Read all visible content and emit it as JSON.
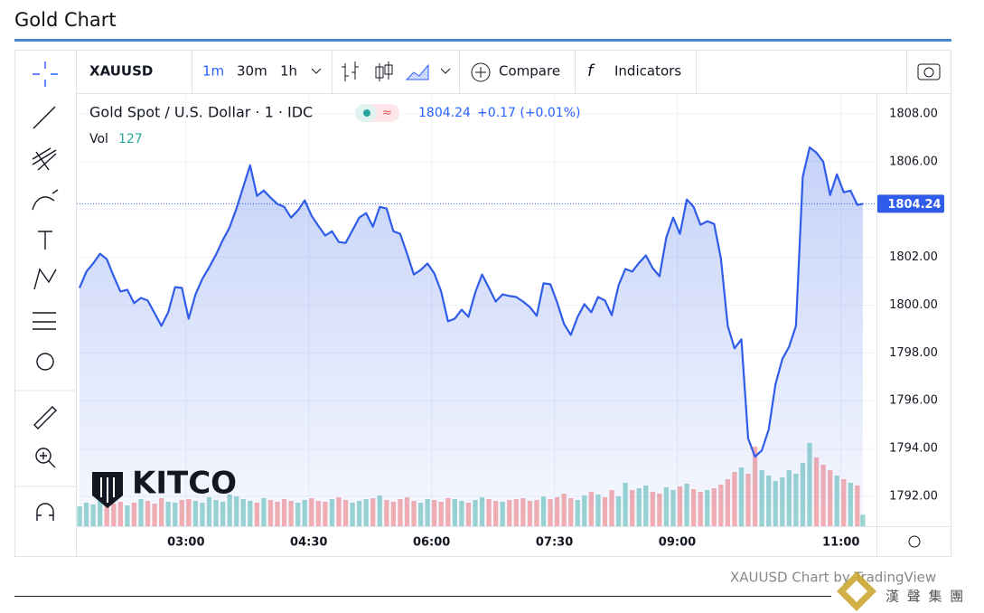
{
  "header": {
    "title": "Gold Chart"
  },
  "toolbar": {
    "symbol": "XAUUSD",
    "intervals": [
      "1m",
      "30m",
      "1h"
    ],
    "compare": "Compare",
    "indicators": "Indicators"
  },
  "legend": {
    "instrument": "Gold Spot / U.S. Dollar · 1 · IDC",
    "change": "+0.17 (+0.01%)"
  },
  "watermark": "KITCO",
  "footer": {
    "credit": "XAUUSD Chart by TradingView",
    "stamp": "漢 聲 集 團"
  },
  "chart_data": {
    "type": "area",
    "color": "#2f5ce8",
    "xlim": [
      100,
      686
    ],
    "xticks": [
      {
        "value": 180,
        "label": "03:00"
      },
      {
        "value": 270,
        "label": "04:30"
      },
      {
        "value": 360,
        "label": "06:00"
      },
      {
        "value": 450,
        "label": "07:30"
      },
      {
        "value": 540,
        "label": "09:00"
      },
      {
        "value": 660,
        "label": "11:00"
      }
    ],
    "ylim": [
      1790.75,
      1808.83
    ],
    "yticks": [
      {
        "value": 1792,
        "label": "1792.00"
      },
      {
        "value": 1794,
        "label": "1794.00"
      },
      {
        "value": 1796,
        "label": "1796.00"
      },
      {
        "value": 1798,
        "label": "1798.00"
      },
      {
        "value": 1800,
        "label": "1800.00"
      },
      {
        "value": 1802,
        "label": "1802.00"
      },
      {
        "value": 1804,
        "label": "1804.00"
      },
      {
        "value": 1806,
        "label": "1806.00"
      },
      {
        "value": 1808,
        "label": "1808.00"
      }
    ],
    "grid": true,
    "x": [
      102,
      107,
      112,
      117,
      122,
      127,
      132,
      137,
      142,
      147,
      152,
      157,
      162,
      167,
      172,
      177,
      182,
      187,
      192,
      197,
      202,
      207,
      212,
      217,
      222,
      227,
      232,
      237,
      242,
      247,
      252,
      257,
      262,
      267,
      272,
      277,
      282,
      287,
      292,
      297,
      302,
      307,
      312,
      317,
      322,
      327,
      332,
      337,
      342,
      347,
      352,
      357,
      362,
      367,
      372,
      377,
      382,
      387,
      392,
      397,
      402,
      407,
      412,
      417,
      422,
      427,
      432,
      437,
      442,
      447,
      452,
      457,
      462,
      467,
      472,
      477,
      482,
      487,
      492,
      497,
      502,
      507,
      512,
      517,
      522,
      527,
      532,
      537,
      542,
      547,
      552,
      557,
      562,
      567,
      572,
      577,
      582,
      587,
      592,
      597,
      602,
      607,
      612,
      617,
      622,
      627,
      632,
      637,
      642,
      647,
      652,
      657,
      662,
      667,
      672,
      676
    ],
    "values": [
      1800.72,
      1801.4,
      1801.74,
      1802.15,
      1801.92,
      1801.21,
      1800.57,
      1800.64,
      1800.08,
      1800.3,
      1800.19,
      1799.66,
      1799.13,
      1799.7,
      1800.75,
      1800.72,
      1799.43,
      1800.45,
      1801.09,
      1801.58,
      1802.11,
      1802.72,
      1803.25,
      1804.04,
      1804.94,
      1805.85,
      1804.57,
      1804.79,
      1804.49,
      1804.23,
      1804.11,
      1803.66,
      1803.96,
      1804.38,
      1803.74,
      1803.32,
      1802.91,
      1803.09,
      1802.64,
      1802.6,
      1803.13,
      1803.66,
      1803.85,
      1803.28,
      1804.11,
      1804.04,
      1803.09,
      1802.98,
      1802.15,
      1801.28,
      1801.47,
      1801.74,
      1801.32,
      1800.57,
      1799.32,
      1799.43,
      1799.81,
      1799.51,
      1800.53,
      1801.28,
      1800.72,
      1800.15,
      1800.45,
      1800.38,
      1800.34,
      1800.15,
      1799.92,
      1799.55,
      1800.91,
      1800.87,
      1800.11,
      1799.21,
      1798.75,
      1799.51,
      1800.04,
      1799.7,
      1800.34,
      1800.19,
      1799.58,
      1800.83,
      1801.51,
      1801.4,
      1801.77,
      1802.08,
      1801.55,
      1801.21,
      1802.83,
      1803.66,
      1802.98,
      1804.42,
      1804.11,
      1803.36,
      1803.51,
      1803.4,
      1801.96,
      1799.13,
      1798.19,
      1798.57,
      1794.42,
      1793.66,
      1793.92,
      1794.79,
      1796.68,
      1797.74,
      1798.26,
      1799.13,
      1805.36,
      1806.6,
      1806.38,
      1806.0,
      1804.6,
      1805.47,
      1804.72,
      1804.79,
      1804.19,
      1804.24
    ],
    "volume": {
      "name": "Vol",
      "up_color": "#26a69a",
      "down_color": "#ef5350",
      "values": [
        220,
        260,
        240,
        280,
        300,
        250,
        270,
        230,
        260,
        300,
        280,
        250,
        310,
        270,
        260,
        290,
        300,
        280,
        260,
        320,
        290,
        270,
        350,
        330,
        300,
        280,
        260,
        310,
        290,
        270,
        300,
        280,
        260,
        290,
        310,
        280,
        270,
        300,
        320,
        290,
        260,
        280,
        300,
        310,
        340,
        290,
        270,
        300,
        320,
        280,
        260,
        300,
        290,
        270,
        310,
        300,
        280,
        260,
        290,
        320,
        300,
        280,
        270,
        290,
        300,
        310,
        280,
        290,
        330,
        300,
        320,
        360,
        310,
        290,
        340,
        380,
        350,
        320,
        400,
        330,
        480,
        400,
        420,
        450,
        380,
        360,
        430,
        400,
        440,
        470,
        410,
        380,
        400,
        420,
        460,
        520,
        600,
        650,
        580,
        880,
        620,
        560,
        500,
        540,
        620,
        580,
        700,
        920,
        760,
        680,
        620,
        560,
        520,
        480,
        450,
        127
      ]
    }
  }
}
